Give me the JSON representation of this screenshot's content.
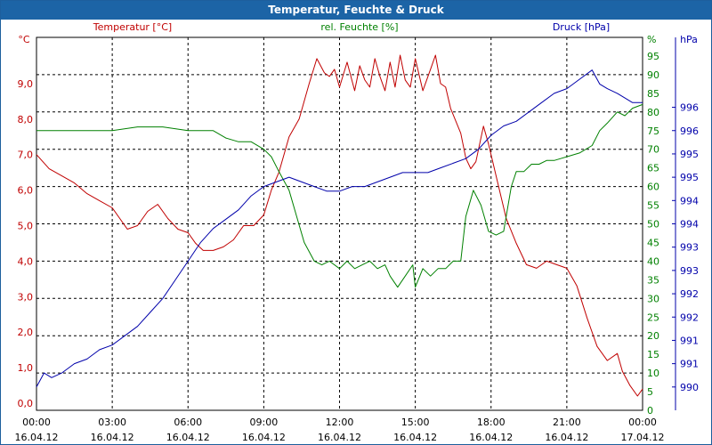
{
  "window": {
    "title": "Temperatur, Feuchte & Druck"
  },
  "colors": {
    "temperature": "#c00000",
    "humidity": "#008000",
    "pressure": "#0000aa",
    "grid": "#000000",
    "titlebar": "#1c64a6"
  },
  "chart_data": {
    "type": "line",
    "title": "Temperatur, Feuchte & Druck",
    "x_ticks": [
      {
        "time": "00:00",
        "date": "16.04.12"
      },
      {
        "time": "03:00",
        "date": "16.04.12"
      },
      {
        "time": "06:00",
        "date": "16.04.12"
      },
      {
        "time": "09:00",
        "date": "16.04.12"
      },
      {
        "time": "12:00",
        "date": "16.04.12"
      },
      {
        "time": "15:00",
        "date": "16.04.12"
      },
      {
        "time": "18:00",
        "date": "16.04.12"
      },
      {
        "time": "21:00",
        "date": "16.04.12"
      },
      {
        "time": "00:00",
        "date": "17.04.12"
      }
    ],
    "xlim": [
      0,
      24
    ],
    "axes": {
      "temperature": {
        "label": "Temperatur [°C]",
        "unit": "°C",
        "ylim": [
          -0.2,
          10.3
        ],
        "ticks": [
          "0,0",
          "1,0",
          "2,0",
          "3,0",
          "4,0",
          "5,0",
          "6,0",
          "7,0",
          "8,0",
          "9,0"
        ]
      },
      "humidity": {
        "label": "rel. Feuchte [%]",
        "unit": "%",
        "ylim": [
          0,
          100
        ],
        "ticks": [
          "0",
          "5",
          "10",
          "15",
          "20",
          "25",
          "30",
          "35",
          "40",
          "45",
          "50",
          "55",
          "60",
          "65",
          "70",
          "75",
          "80",
          "85",
          "90",
          "95"
        ]
      },
      "pressure": {
        "label": "Druck [hPa]",
        "unit": "hPa",
        "ylim": [
          989.5,
          997.5
        ],
        "ticks": [
          {
            "v": 990.0,
            "t": "990"
          },
          {
            "v": 990.5,
            "t": "991"
          },
          {
            "v": 991.0,
            "t": "991"
          },
          {
            "v": 991.5,
            "t": "992"
          },
          {
            "v": 992.0,
            "t": "992"
          },
          {
            "v": 992.5,
            "t": "993"
          },
          {
            "v": 993.0,
            "t": "993"
          },
          {
            "v": 993.5,
            "t": "994"
          },
          {
            "v": 994.0,
            "t": "994"
          },
          {
            "v": 994.5,
            "t": "995"
          },
          {
            "v": 995.0,
            "t": "995"
          },
          {
            "v": 995.5,
            "t": "996"
          },
          {
            "v": 996.0,
            "t": "996"
          }
        ]
      }
    },
    "series": [
      {
        "name": "Temperatur [°C]",
        "axis": "temperature",
        "x": [
          0,
          0.5,
          1,
          1.5,
          2,
          2.5,
          3,
          3.3,
          3.6,
          4,
          4.4,
          4.8,
          5.2,
          5.6,
          6,
          6.3,
          6.6,
          7,
          7.4,
          7.8,
          8.2,
          8.6,
          9,
          9.3,
          9.6,
          10,
          10.4,
          10.8,
          11.1,
          11.4,
          11.6,
          11.8,
          12,
          12.3,
          12.6,
          12.8,
          13,
          13.2,
          13.4,
          13.6,
          13.8,
          14,
          14.2,
          14.4,
          14.6,
          14.8,
          15,
          15.3,
          15.6,
          15.8,
          16,
          16.2,
          16.4,
          16.8,
          17,
          17.2,
          17.4,
          17.7,
          17.9,
          18.2,
          18.6,
          19,
          19.4,
          19.8,
          20.2,
          20.6,
          21,
          21.4,
          21.8,
          22.2,
          22.6,
          23,
          23.2,
          23.5,
          23.8,
          24
        ],
        "values": [
          7.0,
          6.6,
          6.4,
          6.2,
          5.9,
          5.7,
          5.5,
          5.2,
          4.9,
          5.0,
          5.4,
          5.6,
          5.2,
          4.9,
          4.8,
          4.5,
          4.3,
          4.3,
          4.4,
          4.6,
          5.0,
          5.0,
          5.3,
          6.0,
          6.5,
          7.5,
          8.0,
          9.0,
          9.7,
          9.3,
          9.2,
          9.4,
          8.9,
          9.6,
          8.8,
          9.5,
          9.1,
          8.9,
          9.7,
          9.2,
          8.8,
          9.6,
          8.9,
          9.8,
          9.1,
          8.9,
          9.7,
          8.8,
          9.4,
          9.8,
          9.0,
          8.9,
          8.3,
          7.6,
          6.9,
          6.6,
          6.8,
          7.8,
          7.3,
          6.4,
          5.2,
          4.5,
          3.9,
          3.8,
          4.0,
          3.9,
          3.8,
          3.3,
          2.4,
          1.6,
          1.2,
          1.4,
          0.9,
          0.5,
          0.2,
          0.4
        ]
      },
      {
        "name": "rel. Feuchte [%]",
        "axis": "humidity",
        "x": [
          0,
          1,
          2,
          3,
          4,
          5,
          6,
          7,
          7.5,
          8,
          8.5,
          9,
          9.3,
          9.6,
          10,
          10.3,
          10.6,
          11,
          11.3,
          11.6,
          12,
          12.3,
          12.6,
          12.9,
          13.2,
          13.5,
          13.8,
          14,
          14.3,
          14.6,
          14.9,
          15,
          15.3,
          15.6,
          15.9,
          16.2,
          16.5,
          16.8,
          17,
          17.3,
          17.6,
          17.9,
          18.2,
          18.5,
          18.8,
          19,
          19.3,
          19.6,
          19.9,
          20.2,
          20.5,
          21,
          21.5,
          22,
          22.3,
          22.6,
          23,
          23.3,
          23.6,
          24
        ],
        "values": [
          75,
          75,
          75,
          75,
          76,
          76,
          75,
          75,
          73,
          72,
          72,
          70,
          68,
          64,
          59,
          52,
          45,
          40,
          39,
          40,
          38,
          40,
          38,
          39,
          40,
          38,
          39,
          36,
          33,
          36,
          39,
          33,
          38,
          36,
          38,
          38,
          40,
          40,
          52,
          59,
          55,
          48,
          47,
          48,
          60,
          64,
          64,
          66,
          66,
          67,
          67,
          68,
          69,
          71,
          75,
          77,
          80,
          79,
          81,
          82
        ]
      },
      {
        "name": "Druck [hPa]",
        "axis": "pressure",
        "x": [
          0,
          0.3,
          0.6,
          1,
          1.5,
          2,
          2.5,
          3,
          3.5,
          4,
          4.5,
          5,
          5.5,
          6,
          6.5,
          7,
          7.5,
          8,
          8.5,
          9,
          9.5,
          10,
          10.5,
          11,
          11.5,
          12,
          12.5,
          13,
          13.5,
          14,
          14.5,
          15,
          15.5,
          16,
          16.5,
          17,
          17.5,
          18,
          18.5,
          19,
          19.5,
          20,
          20.5,
          21,
          21.5,
          22,
          22.3,
          22.6,
          23,
          23.3,
          23.6,
          24
        ],
        "values": [
          990.0,
          990.3,
          990.2,
          990.3,
          990.5,
          990.6,
          990.8,
          990.9,
          991.1,
          991.3,
          991.6,
          991.9,
          992.3,
          992.7,
          993.1,
          993.4,
          993.6,
          993.8,
          994.1,
          994.3,
          994.4,
          994.5,
          994.4,
          994.3,
          994.2,
          994.2,
          994.3,
          994.3,
          994.4,
          994.5,
          994.6,
          994.6,
          994.6,
          994.7,
          994.8,
          994.9,
          995.1,
          995.4,
          995.6,
          995.7,
          995.9,
          996.1,
          996.3,
          996.4,
          996.6,
          996.8,
          996.5,
          996.4,
          996.3,
          996.2,
          996.1,
          996.1
        ]
      }
    ]
  }
}
